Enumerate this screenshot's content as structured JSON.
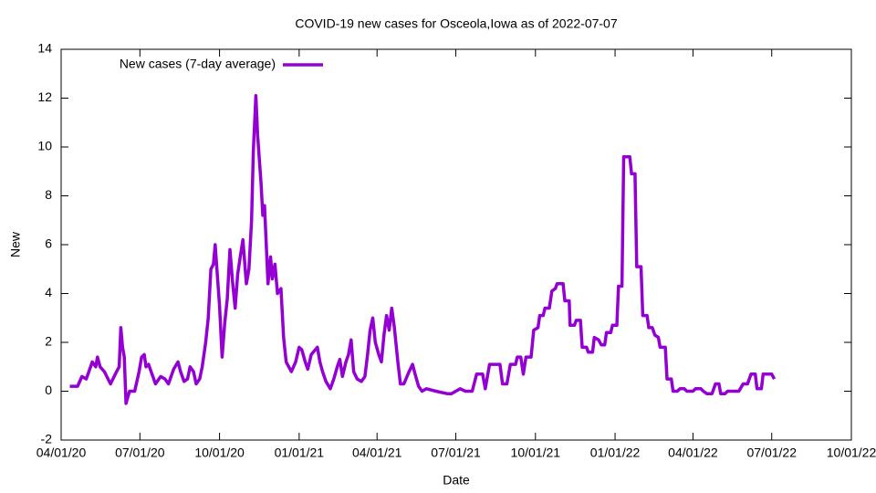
{
  "chart_data": {
    "type": "line",
    "title": "COVID-19 new cases for Osceola,Iowa as of 2022-07-07",
    "xlabel": "Date",
    "ylabel": "New",
    "legend": "top-left",
    "xlim": [
      "2020-04-01",
      "2022-10-01"
    ],
    "xticks": [
      {
        "value": "2020-04-01",
        "label": "04/01/20"
      },
      {
        "value": "2020-07-01",
        "label": "07/01/20"
      },
      {
        "value": "2020-10-01",
        "label": "10/01/20"
      },
      {
        "value": "2021-01-01",
        "label": "01/01/21"
      },
      {
        "value": "2021-04-01",
        "label": "04/01/21"
      },
      {
        "value": "2021-07-01",
        "label": "07/01/21"
      },
      {
        "value": "2021-10-01",
        "label": "10/01/21"
      },
      {
        "value": "2022-01-01",
        "label": "01/01/22"
      },
      {
        "value": "2022-04-01",
        "label": "04/01/22"
      },
      {
        "value": "2022-07-01",
        "label": "07/01/22"
      },
      {
        "value": "2022-10-01",
        "label": "10/01/22"
      }
    ],
    "ylim": [
      -2,
      14
    ],
    "yticks": [
      -2,
      0,
      2,
      4,
      6,
      8,
      10,
      12,
      14
    ],
    "x": [
      "2020-04-11",
      "2020-04-20",
      "2020-04-25",
      "2020-04-30",
      "2020-05-03",
      "2020-05-07",
      "2020-05-11",
      "2020-05-13",
      "2020-05-16",
      "2020-05-21",
      "2020-05-28",
      "2020-06-04",
      "2020-06-07",
      "2020-06-09",
      "2020-06-11",
      "2020-06-13",
      "2020-06-15",
      "2020-06-19",
      "2020-06-25",
      "2020-06-30",
      "2020-07-03",
      "2020-07-06",
      "2020-07-08",
      "2020-07-11",
      "2020-07-14",
      "2020-07-19",
      "2020-07-25",
      "2020-07-30",
      "2020-08-03",
      "2020-08-09",
      "2020-08-14",
      "2020-08-17",
      "2020-08-21",
      "2020-08-25",
      "2020-08-28",
      "2020-09-01",
      "2020-09-04",
      "2020-09-08",
      "2020-09-11",
      "2020-09-15",
      "2020-09-18",
      "2020-09-21",
      "2020-09-24",
      "2020-09-26",
      "2020-09-28",
      "2020-10-01",
      "2020-10-04",
      "2020-10-07",
      "2020-10-10",
      "2020-10-13",
      "2020-10-16",
      "2020-10-19",
      "2020-10-22",
      "2020-10-25",
      "2020-10-28",
      "2020-11-01",
      "2020-11-04",
      "2020-11-07",
      "2020-11-09",
      "2020-11-12",
      "2020-11-14",
      "2020-11-18",
      "2020-11-20",
      "2020-11-22",
      "2020-11-24",
      "2020-11-26",
      "2020-11-29",
      "2020-12-01",
      "2020-12-04",
      "2020-12-07",
      "2020-12-11",
      "2020-12-14",
      "2020-12-17",
      "2020-12-23",
      "2020-12-28",
      "2021-01-01",
      "2021-01-04",
      "2021-01-08",
      "2021-01-11",
      "2021-01-15",
      "2021-01-22",
      "2021-01-25",
      "2021-01-28",
      "2021-02-01",
      "2021-02-06",
      "2021-02-10",
      "2021-02-14",
      "2021-02-17",
      "2021-02-20",
      "2021-02-24",
      "2021-02-27",
      "2021-03-02",
      "2021-03-05",
      "2021-03-09",
      "2021-03-14",
      "2021-03-18",
      "2021-03-21",
      "2021-03-24",
      "2021-03-27",
      "2021-03-30",
      "2021-04-03",
      "2021-04-06",
      "2021-04-09",
      "2021-04-12",
      "2021-04-15",
      "2021-04-18",
      "2021-04-21",
      "2021-04-25",
      "2021-04-28",
      "2021-05-02",
      "2021-05-08",
      "2021-05-12",
      "2021-05-15",
      "2021-05-19",
      "2021-05-23",
      "2021-05-28",
      "2021-06-08",
      "2021-06-21",
      "2021-06-26",
      "2021-07-01",
      "2021-07-06",
      "2021-07-12",
      "2021-07-20",
      "2021-07-25",
      "2021-08-01",
      "2021-08-04",
      "2021-08-09",
      "2021-08-21",
      "2021-08-24",
      "2021-08-29",
      "2021-09-02",
      "2021-09-08",
      "2021-09-10",
      "2021-09-14",
      "2021-09-17",
      "2021-09-20",
      "2021-09-26",
      "2021-09-29",
      "2021-10-04",
      "2021-10-06",
      "2021-10-10",
      "2021-10-12",
      "2021-10-17",
      "2021-10-20",
      "2021-10-24",
      "2021-10-26",
      "2021-11-02",
      "2021-11-04",
      "2021-11-09",
      "2021-11-10",
      "2021-11-15",
      "2021-11-17",
      "2021-11-22",
      "2021-11-24",
      "2021-11-29",
      "2021-12-01",
      "2021-12-06",
      "2021-12-08",
      "2021-12-13",
      "2021-12-16",
      "2021-12-20",
      "2021-12-22",
      "2021-12-27",
      "2021-12-29",
      "2022-01-03",
      "2022-01-05",
      "2022-01-09",
      "2022-01-11",
      "2022-01-18",
      "2022-01-20",
      "2022-01-24",
      "2022-01-26",
      "2022-01-31",
      "2022-02-02",
      "2022-02-07",
      "2022-02-09",
      "2022-02-13",
      "2022-02-16",
      "2022-02-20",
      "2022-02-22",
      "2022-02-28",
      "2022-03-02",
      "2022-03-07",
      "2022-03-09",
      "2022-03-14",
      "2022-03-17",
      "2022-03-22",
      "2022-03-25",
      "2022-04-01",
      "2022-04-04",
      "2022-04-10",
      "2022-04-13",
      "2022-04-17",
      "2022-04-23",
      "2022-04-27",
      "2022-05-01",
      "2022-05-03",
      "2022-05-08",
      "2022-05-11",
      "2022-05-24",
      "2022-05-29",
      "2022-06-03",
      "2022-06-07",
      "2022-06-12",
      "2022-06-14",
      "2022-06-19",
      "2022-06-21",
      "2022-07-01",
      "2022-07-04"
    ],
    "series": [
      {
        "name": "New cases (7-day average)",
        "color": "#9400d3",
        "values": [
          0.2,
          0.2,
          0.6,
          0.5,
          0.8,
          1.2,
          1.0,
          1.4,
          1.0,
          0.8,
          0.3,
          0.8,
          1.0,
          2.6,
          1.8,
          1.4,
          -0.5,
          0,
          0,
          0.8,
          1.4,
          1.5,
          1.0,
          1.1,
          0.8,
          0.3,
          0.6,
          0.5,
          0.3,
          0.9,
          1.2,
          0.8,
          0.4,
          0.5,
          1.0,
          0.8,
          0.3,
          0.5,
          1.0,
          2.0,
          3.0,
          5.0,
          5.2,
          6.0,
          5.0,
          3.5,
          1.4,
          2.8,
          3.8,
          5.8,
          4.5,
          3.4,
          4.8,
          5.5,
          6.2,
          4.4,
          5.0,
          7.0,
          9.8,
          12.1,
          10.5,
          8.5,
          7.2,
          7.6,
          6.0,
          4.4,
          5.5,
          4.6,
          5.2,
          4.0,
          4.2,
          2.2,
          1.2,
          0.8,
          1.2,
          1.8,
          1.7,
          1.2,
          0.9,
          1.5,
          1.8,
          1.2,
          0.8,
          0.4,
          0.1,
          0.5,
          1.0,
          1.3,
          0.6,
          1.2,
          1.5,
          2.1,
          0.8,
          0.5,
          0.4,
          0.6,
          1.5,
          2.5,
          3.0,
          2.0,
          1.5,
          1.2,
          2.3,
          3.1,
          2.5,
          3.4,
          2.6,
          1.2,
          0.3,
          0.3,
          0.8,
          1.1,
          0.7,
          0.2,
          0,
          0.1,
          0,
          -0.1,
          -0.1,
          0,
          0.1,
          0,
          0,
          0.7,
          0.7,
          0.1,
          1.1,
          1.1,
          0.3,
          0.3,
          1.1,
          1.1,
          1.4,
          1.4,
          0.7,
          1.4,
          1.4,
          2.5,
          2.6,
          3.1,
          3.1,
          3.4,
          3.4,
          4.1,
          4.2,
          4.4,
          4.4,
          3.7,
          3.7,
          2.7,
          2.7,
          2.9,
          2.9,
          1.8,
          1.8,
          1.6,
          1.6,
          2.2,
          2.1,
          1.9,
          1.9,
          2.4,
          2.4,
          2.7,
          2.7,
          4.3,
          4.3,
          9.6,
          9.6,
          8.9,
          8.9,
          5.1,
          5.1,
          3.1,
          3.1,
          2.6,
          2.6,
          2.3,
          2.2,
          1.8,
          1.8,
          0.5,
          0.5,
          0,
          0,
          0.1,
          0.1,
          0,
          0,
          0.1,
          0.1,
          0,
          -0.1,
          -0.1,
          0.3,
          0.3,
          -0.1,
          -0.1,
          0,
          0,
          0.3,
          0.3,
          0.7,
          0.7,
          0.1,
          0.1,
          0.7,
          0.7,
          0.5
        ]
      }
    ]
  }
}
